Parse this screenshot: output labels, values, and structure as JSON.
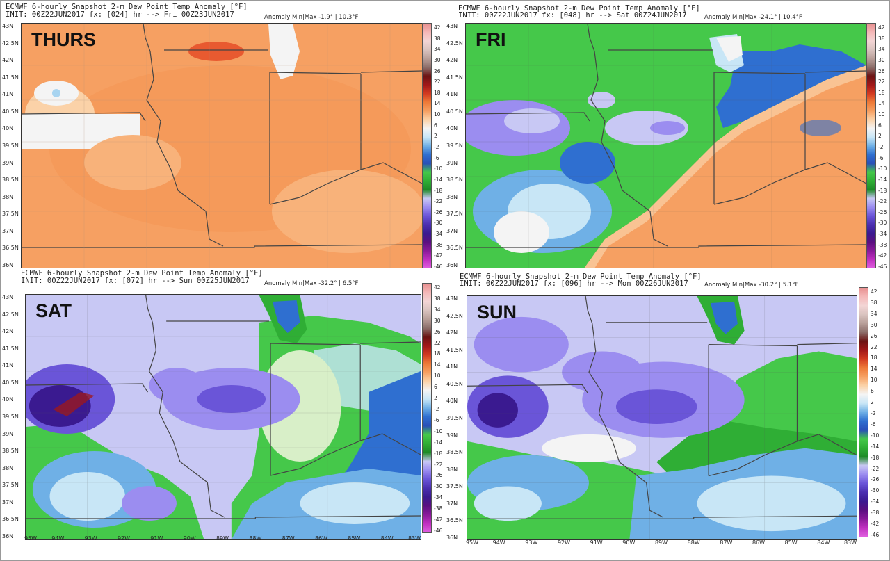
{
  "panels": [
    {
      "day": "THURS",
      "line1": "ECMWF 6-hourly Snapshot 2-m Dew Point Temp Anomaly [°F]",
      "line2": "INIT: 00Z22JUN2017 fx: [024] hr --> Fri 00Z23JUN2017",
      "anomaly": "Anomaly Min|Max -1.9° | 10.3°F",
      "dominant_color": "#f6a062"
    },
    {
      "day": "FRI",
      "line1": "ECMWF 6-hourly Snapshot 2-m Dew Point Temp Anomaly [°F]",
      "line2": "INIT: 00Z22JUN2017 fx: [048] hr --> Sat 00Z24JUN2017",
      "anomaly": "Anomaly Min|Max -24.1° | 10.4°F",
      "dominant_color": "#45c84a"
    },
    {
      "day": "SAT",
      "line1": "ECMWF 6-hourly Snapshot 2-m Dew Point Temp Anomaly [°F]",
      "line2": "INIT: 00Z22JUN2017 fx: [072] hr --> Sun 00Z25JUN2017",
      "anomaly": "Anomaly Min|Max -32.2° | 6.5°F",
      "dominant_color": "#9b8df0"
    },
    {
      "day": "SUN",
      "line1": "ECMWF 6-hourly Snapshot 2-m Dew Point Temp Anomaly [°F]",
      "line2": "INIT: 00Z22JUN2017 fx: [096] hr --> Mon 00Z26JUN2017",
      "anomaly": "Anomaly Min|Max -30.2° | 5.1°F",
      "dominant_color": "#9b8df0"
    }
  ],
  "latitudes": [
    "43N",
    "42.5N",
    "42N",
    "41.5N",
    "41N",
    "40.5N",
    "40N",
    "39.5N",
    "39N",
    "38.5N",
    "38N",
    "37.5N",
    "37N",
    "36.5N",
    "36N"
  ],
  "longitudes": [
    "95W",
    "94W",
    "93W",
    "92W",
    "91W",
    "90W",
    "89W",
    "88W",
    "87W",
    "86W",
    "85W",
    "84W",
    "83W"
  ],
  "colorbar": {
    "ticks": [
      "42",
      "38",
      "34",
      "30",
      "26",
      "22",
      "18",
      "14",
      "10",
      "6",
      "2",
      "-2",
      "-6",
      "-10",
      "-14",
      "-18",
      "-22",
      "-26",
      "-30",
      "-34",
      "-38",
      "-42",
      "-46"
    ],
    "colors": [
      "#e89090",
      "#f4b8b8",
      "#f3d5d5",
      "#d9c3bf",
      "#b89f99",
      "#8c6e6a",
      "#6b1414",
      "#a01818",
      "#d23a20",
      "#ee7a38",
      "#f6a062",
      "#fbd2a8",
      "#f4f4f4",
      "#c8e6f6",
      "#6fb0e6",
      "#2f6fd0",
      "#2a4fb8",
      "#45c84a",
      "#2fae35",
      "#1e8a27",
      "#c8c8f4",
      "#9b8df0",
      "#6a55d8",
      "#4a2fb0",
      "#3a1a90",
      "#5a0f80",
      "#8a1a9a",
      "#c030c0",
      "#e060e0"
    ]
  }
}
